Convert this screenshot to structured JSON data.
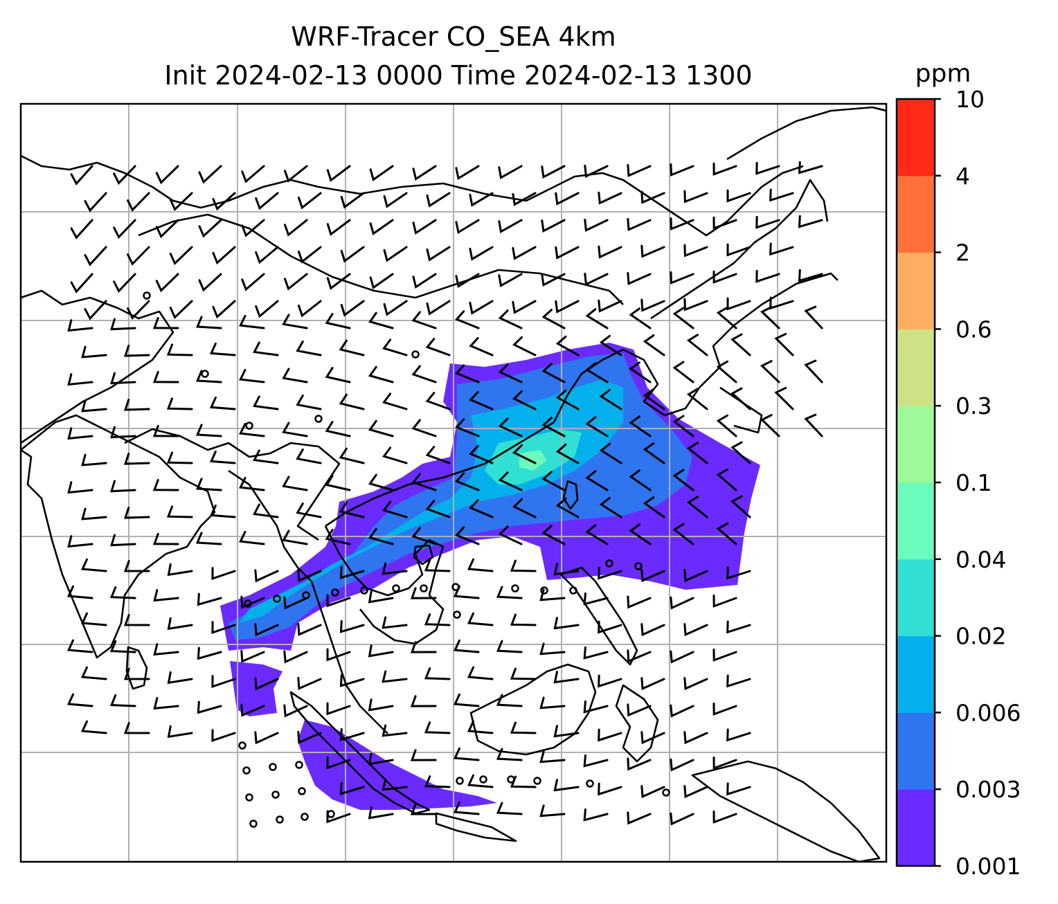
{
  "title_line1": "WRF-Tracer CO_SEA 4km",
  "title_line2": "Init 2024-02-13 0000 Time 2024-02-13 1300",
  "colorbar": {
    "unit": "ppm",
    "tick_labels": [
      "0.001",
      "0.003",
      "0.006",
      "0.02",
      "0.04",
      "0.1",
      "0.3",
      "0.6",
      "2",
      "4",
      "10"
    ],
    "colors": [
      "#6a2bff",
      "#2f75f0",
      "#04b0eb",
      "#31dfd3",
      "#6bfbbc",
      "#9df99a",
      "#cfe185",
      "#fdae60",
      "#ff7139",
      "#ff2a17"
    ]
  },
  "map": {
    "gridlines": true,
    "overlay": "wind barbs",
    "shading": "CO tracer concentration"
  }
}
